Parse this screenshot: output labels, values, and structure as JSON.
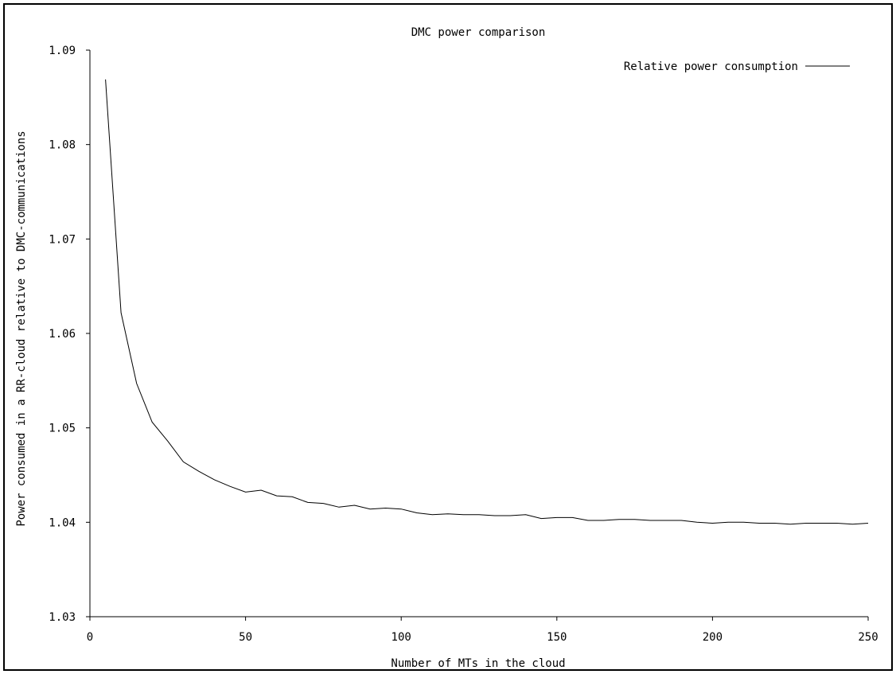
{
  "chart_data": {
    "type": "line",
    "title": "DMC power comparison",
    "xlabel": "Number of MTs in the cloud",
    "ylabel": "Power consumed in a RR-cloud relative to DMC-communications",
    "xlim": [
      0,
      250
    ],
    "ylim": [
      1.03,
      1.09
    ],
    "x_ticks": [
      0,
      50,
      100,
      150,
      200,
      250
    ],
    "x_tick_labels": [
      "0",
      "50",
      "100",
      "150",
      "200",
      "250"
    ],
    "y_ticks": [
      1.03,
      1.04,
      1.05,
      1.06,
      1.07,
      1.08,
      1.09
    ],
    "y_tick_labels": [
      "1.03",
      "1.04",
      "1.05",
      "1.06",
      "1.07",
      "1.08",
      "1.09"
    ],
    "grid": false,
    "legend_position": "top-right",
    "series": [
      {
        "name": "Relative power consumption",
        "color": "#000000",
        "x": [
          5,
          10,
          15,
          20,
          25,
          30,
          35,
          40,
          45,
          50,
          55,
          60,
          65,
          70,
          75,
          80,
          85,
          90,
          95,
          100,
          105,
          110,
          115,
          120,
          125,
          130,
          135,
          140,
          145,
          150,
          155,
          160,
          165,
          170,
          175,
          180,
          185,
          190,
          195,
          200,
          205,
          210,
          215,
          220,
          225,
          230,
          235,
          240,
          245,
          250
        ],
        "y": [
          1.0869,
          1.0622,
          1.0547,
          1.0506,
          1.0486,
          1.0464,
          1.0454,
          1.0445,
          1.0438,
          1.0432,
          1.0434,
          1.0428,
          1.0427,
          1.0421,
          1.042,
          1.0416,
          1.0418,
          1.0414,
          1.0415,
          1.0414,
          1.041,
          1.0408,
          1.0409,
          1.0408,
          1.0408,
          1.0407,
          1.0407,
          1.0408,
          1.0404,
          1.0405,
          1.0405,
          1.0402,
          1.0402,
          1.0403,
          1.0403,
          1.0402,
          1.0402,
          1.0402,
          1.04,
          1.0399,
          1.04,
          1.04,
          1.0399,
          1.0399,
          1.0398,
          1.0399,
          1.0399,
          1.0399,
          1.0398,
          1.0399
        ]
      }
    ]
  }
}
